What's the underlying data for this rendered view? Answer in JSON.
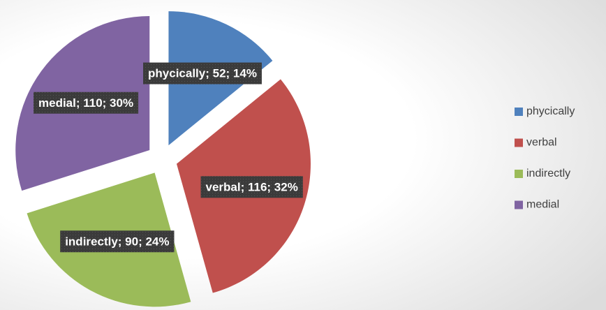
{
  "chart_data": {
    "type": "pie",
    "categories": [
      "phycically",
      "verbal",
      "indirectly",
      "medial"
    ],
    "values": [
      52,
      116,
      90,
      110
    ],
    "value_labels": [
      "phycically; 52; 14%",
      "verbal; 116; 32%",
      "indirectly; 90; 24%",
      "medial; 110; 30%"
    ],
    "colors": [
      "#4f81bd",
      "#c0504d",
      "#9bbb59",
      "#8064a2"
    ],
    "legend": "right"
  }
}
